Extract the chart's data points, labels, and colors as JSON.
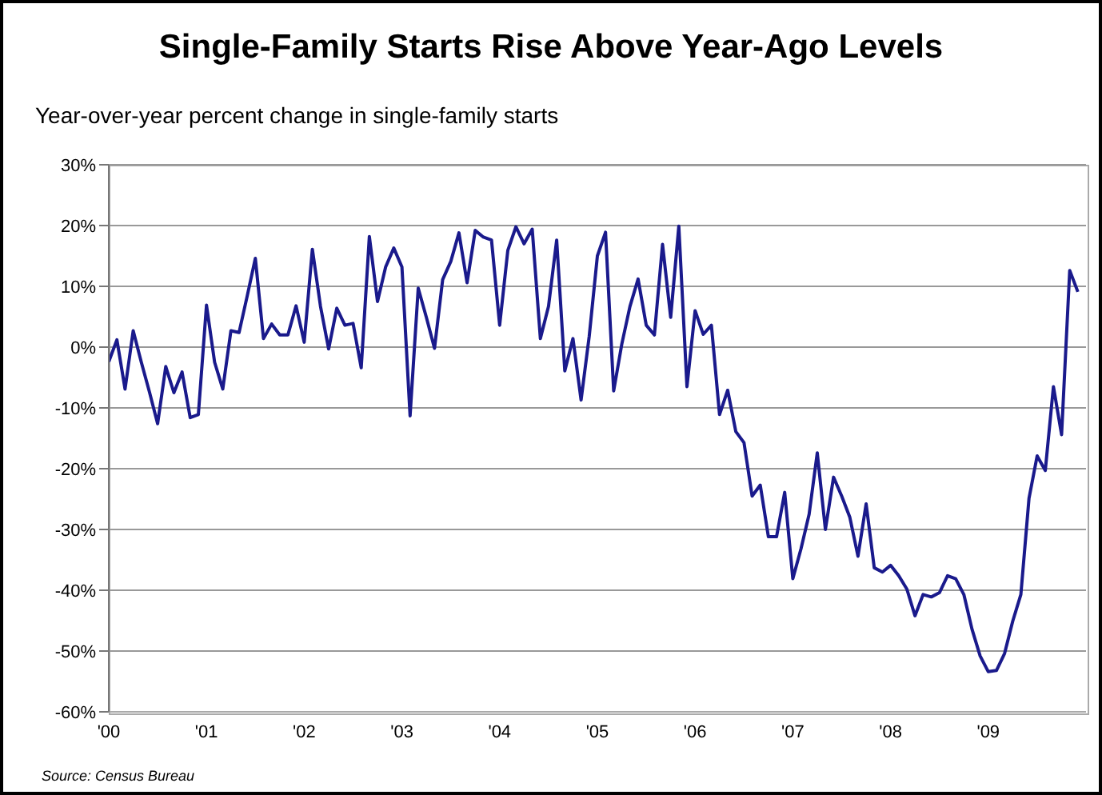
{
  "chart_data": {
    "type": "line",
    "title": "Single-Family Starts Rise Above Year-Ago Levels",
    "ylabel": "Year-over-year percent change in single-family starts",
    "annotations": [
      "Source: Census Bureau"
    ],
    "x": [
      "2000-01",
      "2000-02",
      "2000-03",
      "2000-04",
      "2000-05",
      "2000-06",
      "2000-07",
      "2000-08",
      "2000-09",
      "2000-10",
      "2000-11",
      "2000-12",
      "2001-01",
      "2001-02",
      "2001-03",
      "2001-04",
      "2001-05",
      "2001-06",
      "2001-07",
      "2001-08",
      "2001-09",
      "2001-10",
      "2001-11",
      "2001-12",
      "2002-01",
      "2002-02",
      "2002-03",
      "2002-04",
      "2002-05",
      "2002-06",
      "2002-07",
      "2002-08",
      "2002-09",
      "2002-10",
      "2002-11",
      "2002-12",
      "2003-01",
      "2003-02",
      "2003-03",
      "2003-04",
      "2003-05",
      "2003-06",
      "2003-07",
      "2003-08",
      "2003-09",
      "2003-10",
      "2003-11",
      "2003-12",
      "2004-01",
      "2004-02",
      "2004-03",
      "2004-04",
      "2004-05",
      "2004-06",
      "2004-07",
      "2004-08",
      "2004-09",
      "2004-10",
      "2004-11",
      "2004-12",
      "2005-01",
      "2005-02",
      "2005-03",
      "2005-04",
      "2005-05",
      "2005-06",
      "2005-07",
      "2005-08",
      "2005-09",
      "2005-10",
      "2005-11",
      "2005-12",
      "2006-01",
      "2006-02",
      "2006-03",
      "2006-04",
      "2006-05",
      "2006-06",
      "2006-07",
      "2006-08",
      "2006-09",
      "2006-10",
      "2006-11",
      "2006-12",
      "2007-01",
      "2007-02",
      "2007-03",
      "2007-04",
      "2007-05",
      "2007-06",
      "2007-07",
      "2007-08",
      "2007-09",
      "2007-10",
      "2007-11",
      "2007-12",
      "2008-01",
      "2008-02",
      "2008-03",
      "2008-04",
      "2008-05",
      "2008-06",
      "2008-07",
      "2008-08",
      "2008-09",
      "2008-10",
      "2008-11",
      "2008-12",
      "2009-01",
      "2009-02",
      "2009-03",
      "2009-04",
      "2009-05",
      "2009-06",
      "2009-07",
      "2009-08",
      "2009-09",
      "2009-10",
      "2009-11",
      "2009-12"
    ],
    "series": [
      {
        "color": "#1a1a8c",
        "values": [
          -2.4,
          1.2,
          -6.9,
          2.7,
          -2.5,
          -7.4,
          -12.6,
          -3.2,
          -7.5,
          -4.1,
          -11.6,
          -11.1,
          6.9,
          -2.5,
          -6.9,
          2.7,
          2.4,
          8.4,
          14.6,
          1.4,
          3.8,
          2.0,
          2.0,
          6.8,
          0.8,
          16.1,
          6.7,
          -0.3,
          6.4,
          3.6,
          3.9,
          -3.4,
          18.2,
          7.5,
          13.2,
          16.3,
          13.2,
          -11.3,
          9.7,
          4.9,
          -0.2,
          11.1,
          14.1,
          18.8,
          10.6,
          19.2,
          18.1,
          17.6,
          3.6,
          15.9,
          19.8,
          17.0,
          19.4,
          1.4,
          6.7,
          17.6,
          -3.9,
          1.4,
          -8.7,
          1.8,
          15.0,
          18.9,
          -7.2,
          0.5,
          6.7,
          11.2,
          3.6,
          2.0,
          16.9,
          4.9,
          19.9,
          -6.5,
          6.0,
          2.1,
          3.6,
          -11.1,
          -7.1,
          -13.9,
          -15.7,
          -24.5,
          -22.7,
          -31.2,
          -31.2,
          -23.9,
          -38.1,
          -33.2,
          -27.5,
          -17.4,
          -30.0,
          -21.4,
          -24.5,
          -28.0,
          -34.4,
          -25.8,
          -36.3,
          -37.0,
          -35.9,
          -37.6,
          -39.8,
          -44.2,
          -40.7,
          -41.1,
          -40.4,
          -37.6,
          -38.1,
          -40.7,
          -46.4,
          -50.8,
          -53.4,
          -53.2,
          -50.4,
          -45.1,
          -40.7,
          -24.9,
          -17.9,
          -20.3,
          -6.5,
          -14.4,
          12.6,
          9.1
        ]
      }
    ],
    "xlim": [
      "2000-01",
      "2010-01"
    ],
    "xticks": [
      {
        "value": "2000-01",
        "label": "'00"
      },
      {
        "value": "2001-01",
        "label": "'01"
      },
      {
        "value": "2002-01",
        "label": "'02"
      },
      {
        "value": "2003-01",
        "label": "'03"
      },
      {
        "value": "2004-01",
        "label": "'04"
      },
      {
        "value": "2005-01",
        "label": "'05"
      },
      {
        "value": "2006-01",
        "label": "'06"
      },
      {
        "value": "2007-01",
        "label": "'07"
      },
      {
        "value": "2008-01",
        "label": "'08"
      },
      {
        "value": "2009-01",
        "label": "'09"
      }
    ],
    "ylim": [
      -60,
      30
    ],
    "yticks": [
      {
        "value": -60,
        "label": "-60%"
      },
      {
        "value": -50,
        "label": "-50%"
      },
      {
        "value": -40,
        "label": "-40%"
      },
      {
        "value": -30,
        "label": "-30%"
      },
      {
        "value": -20,
        "label": "-20%"
      },
      {
        "value": -10,
        "label": "-10%"
      },
      {
        "value": 0,
        "label": "0%"
      },
      {
        "value": 10,
        "label": "10%"
      },
      {
        "value": 20,
        "label": "20%"
      },
      {
        "value": 30,
        "label": "30%"
      }
    ],
    "grid": "y",
    "marker": "none",
    "line_style": "solid"
  }
}
